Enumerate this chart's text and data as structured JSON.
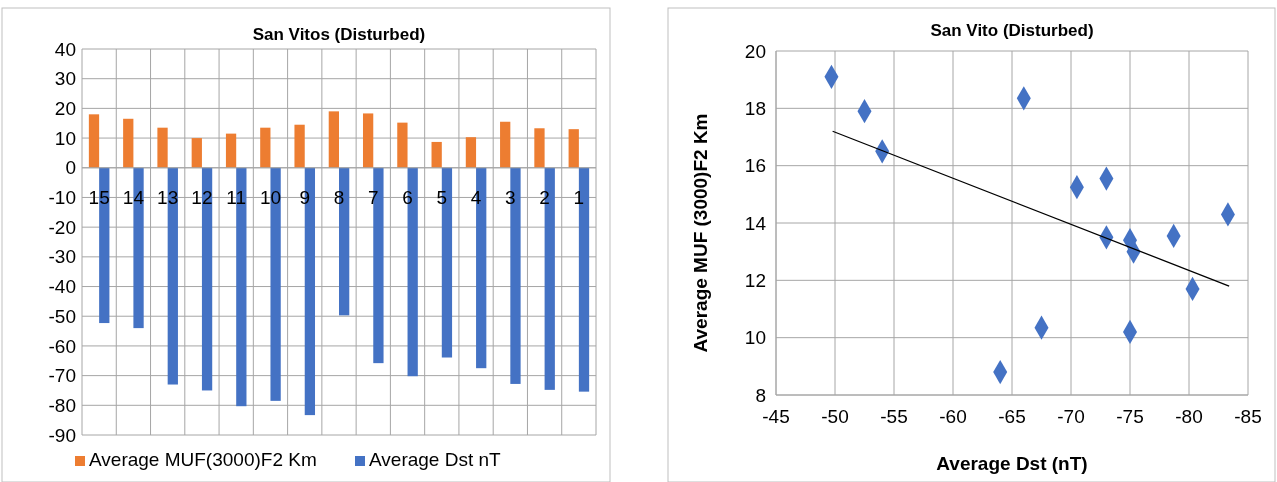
{
  "chart_data": [
    {
      "type": "bar",
      "title": "San Vitos (Disturbed)",
      "categories": [
        "15",
        "14",
        "13",
        "12",
        "11",
        "10",
        "9",
        "8",
        "7",
        "6",
        "5",
        "4",
        "3",
        "2",
        "1"
      ],
      "series": [
        {
          "name": "Average MUF(3000)F2 Km",
          "color": "#ed7d31",
          "values": [
            18,
            16.5,
            13.5,
            10,
            11.5,
            13.5,
            14.5,
            19,
            18.3,
            15.2,
            8.7,
            10.3,
            15.5,
            13.3,
            13
          ]
        },
        {
          "name": "Average Dst nT",
          "color": "#4472c4",
          "values": [
            -52.3,
            -54,
            -73,
            -75,
            -80.3,
            -78.5,
            -83.3,
            -49.7,
            -65.8,
            -70.2,
            -63.9,
            -67.5,
            -72.8,
            -74.8,
            -75.4
          ]
        }
      ],
      "ylim": [
        -90,
        40
      ],
      "yticks": [
        -90,
        -80,
        -70,
        -60,
        -50,
        -40,
        -30,
        -20,
        -10,
        0,
        10,
        20,
        30,
        40
      ],
      "grid": true,
      "legend": "bottom"
    },
    {
      "type": "scatter",
      "title": "San Vito (Disturbed)",
      "xlabel": "Average Dst (nT)",
      "ylabel": "Average MUF (3000)F2 Km",
      "marker": "diamond",
      "series": [
        {
          "color": "#4472c4",
          "x": [
            -49.7,
            -52.5,
            -54,
            -66,
            -70.5,
            -73,
            -83.3,
            -73,
            -75,
            -75.3,
            -78.7,
            -80.3,
            -67.5,
            -75,
            -64
          ],
          "values": [
            19.1,
            17.9,
            16.5,
            18.35,
            15.25,
            15.55,
            14.3,
            13.5,
            13.4,
            13.0,
            13.55,
            11.7,
            10.35,
            10.2,
            8.8
          ]
        },
        {
          "type": "line",
          "marker": "none",
          "color": "#000000",
          "x": [
            -49.8,
            -83.4
          ],
          "values": [
            17.2,
            11.8
          ]
        }
      ],
      "xlim": [
        -45,
        -85
      ],
      "xticks": [
        -45,
        -50,
        -55,
        -60,
        -65,
        -70,
        -75,
        -80,
        -85
      ],
      "ylim": [
        8,
        20
      ],
      "yticks": [
        8,
        10,
        12,
        14,
        16,
        18,
        20
      ],
      "grid": true
    }
  ]
}
